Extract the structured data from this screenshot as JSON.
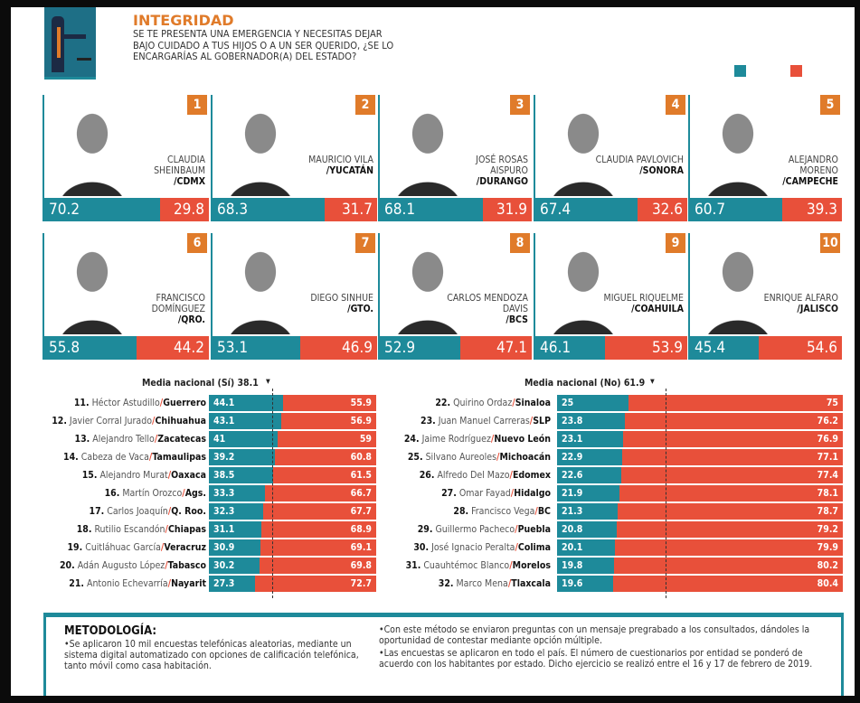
{
  "header": {
    "title": "INTEGRIDAD",
    "question": "SE TE PRESENTA UNA EMERGENCIA Y NECESITAS DEJAR BAJO CUIDADO A TUS HIJOS O A UN SER QUERIDO, ¿SE LO ENCARGARÍAS AL GOBERNADOR(A) DEL ESTADO?"
  },
  "colors": {
    "yes": "#1e8a9a",
    "no": "#e8503a",
    "accent": "#e07b2a"
  },
  "chart_data": {
    "type": "bar",
    "stacked": true,
    "top10": [
      {
        "rank": "1",
        "name": "CLAUDIA SHEINBAUM",
        "state": "/CDMX",
        "yes": 70.2,
        "no": 29.8
      },
      {
        "rank": "2",
        "name": "MAURICIO VILA",
        "state": "/YUCATÁN",
        "yes": 68.3,
        "no": 31.7
      },
      {
        "rank": "3",
        "name": "JOSÉ ROSAS AISPURO",
        "state": "/DURANGO",
        "yes": 68.1,
        "no": 31.9
      },
      {
        "rank": "4",
        "name": "CLAUDIA PAVLOVICH",
        "state": "/SONORA",
        "yes": 67.4,
        "no": 32.6
      },
      {
        "rank": "5",
        "name": "ALEJANDRO MORENO",
        "state": "/CAMPECHE",
        "yes": 60.7,
        "no": 39.3
      },
      {
        "rank": "6",
        "name": "FRANCISCO DOMÍNGUEZ",
        "state": "/QRO.",
        "yes": 55.8,
        "no": 44.2
      },
      {
        "rank": "7",
        "name": "DIEGO SINHUE",
        "state": "/GTO.",
        "yes": 53.1,
        "no": 46.9
      },
      {
        "rank": "8",
        "name": "CARLOS MENDOZA DAVIS",
        "state": "/BCS",
        "yes": 52.9,
        "no": 47.1
      },
      {
        "rank": "9",
        "name": "MIGUEL RIQUELME",
        "state": "/COAHUILA",
        "yes": 46.1,
        "no": 53.9
      },
      {
        "rank": "10",
        "name": "ENRIQUE ALFARO",
        "state": "/JALISCO",
        "yes": 45.4,
        "no": 54.6
      }
    ],
    "mean_yes_label": "Media nacional (Sí) 38.1",
    "mean_yes": 38.1,
    "mean_no_label": "Media nacional (No) 61.9",
    "mean_no": 61.9,
    "left": [
      {
        "rank": "11.",
        "name": "Héctor Astudillo",
        "state": "Guerrero",
        "yes": 44.1,
        "no": 55.9
      },
      {
        "rank": "12.",
        "name": "Javier Corral Jurado",
        "state": "Chihuahua",
        "yes": 43.1,
        "no": 56.9
      },
      {
        "rank": "13.",
        "name": "Alejandro Tello",
        "state": "Zacatecas",
        "yes": 41,
        "no": 59
      },
      {
        "rank": "14.",
        "name": "Cabeza de Vaca",
        "state": "Tamaulipas",
        "yes": 39.2,
        "no": 60.8
      },
      {
        "rank": "15.",
        "name": "Alejandro Murat",
        "state": "Oaxaca",
        "yes": 38.5,
        "no": 61.5
      },
      {
        "rank": "16.",
        "name": "Martín Orozco",
        "state": "Ags.",
        "yes": 33.3,
        "no": 66.7
      },
      {
        "rank": "17.",
        "name": "Carlos Joaquín",
        "state": "Q. Roo.",
        "yes": 32.3,
        "no": 67.7
      },
      {
        "rank": "18.",
        "name": "Rutilio Escandón",
        "state": "Chiapas",
        "yes": 31.1,
        "no": 68.9
      },
      {
        "rank": "19.",
        "name": "Cuitláhuac García",
        "state": "Veracruz",
        "yes": 30.9,
        "no": 69.1
      },
      {
        "rank": "20.",
        "name": "Adán Augusto López",
        "state": "Tabasco",
        "yes": 30.2,
        "no": 69.8
      },
      {
        "rank": "21.",
        "name": "Antonio Echevarría",
        "state": "Nayarit",
        "yes": 27.3,
        "no": 72.7
      }
    ],
    "right": [
      {
        "rank": "22.",
        "name": "Quirino Ordaz",
        "state": "Sinaloa",
        "yes": 25,
        "no": 75
      },
      {
        "rank": "23.",
        "name": "Juan Manuel Carreras",
        "state": "SLP",
        "yes": 23.8,
        "no": 76.2
      },
      {
        "rank": "24.",
        "name": "Jaime Rodríguez",
        "state": "Nuevo León",
        "yes": 23.1,
        "no": 76.9
      },
      {
        "rank": "25.",
        "name": "Silvano Aureoles",
        "state": "Michoacán",
        "yes": 22.9,
        "no": 77.1
      },
      {
        "rank": "26.",
        "name": "Alfredo Del Mazo",
        "state": "Edomex",
        "yes": 22.6,
        "no": 77.4
      },
      {
        "rank": "27.",
        "name": "Omar Fayad",
        "state": "Hidalgo",
        "yes": 21.9,
        "no": 78.1
      },
      {
        "rank": "28.",
        "name": "Francisco Vega",
        "state": "BC",
        "yes": 21.3,
        "no": 78.7
      },
      {
        "rank": "29.",
        "name": "Guillermo Pacheco",
        "state": "Puebla",
        "yes": 20.8,
        "no": 79.2
      },
      {
        "rank": "30.",
        "name": "José Ignacio Peralta",
        "state": "Colima",
        "yes": 20.1,
        "no": 79.9
      },
      {
        "rank": "31.",
        "name": "Cuauhtémoc Blanco",
        "state": "Morelos",
        "yes": 19.8,
        "no": 80.2
      },
      {
        "rank": "32.",
        "name": "Marco Mena",
        "state": "Tlaxcala",
        "yes": 19.6,
        "no": 80.4
      }
    ]
  },
  "methodology": {
    "title": "METODOLOGÍA:",
    "p1": "•Se aplicaron 10 mil encuestas telefónicas aleatorias, mediante un sistema digital automatizado con opciones de calificación telefónica, tanto móvil como casa habitación.",
    "p2": "•Con este método se enviaron preguntas con un mensaje pregrabado a los consultados, dándoles la oportunidad de contestar mediante opción múltiple.",
    "p3": "•Las encuestas se aplicaron en todo el país. El número de cuestionarios por entidad se ponderó de acuerdo con los habitantes por estado. Dicho ejercicio se realizó entre el 16 y 17 de febrero de 2019."
  }
}
